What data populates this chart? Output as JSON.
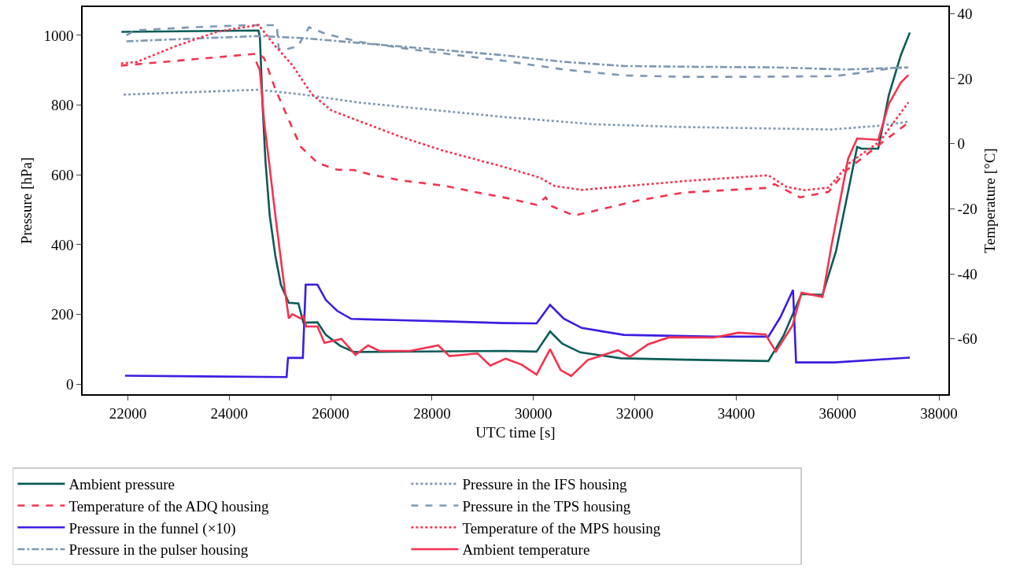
{
  "chart_data": {
    "type": "line",
    "xlabel": "UTC time [s]",
    "ylabel": "Pressure [hPa]",
    "y2label": "Temperature [°C]",
    "xlim": [
      21108,
      38185
    ],
    "xticks": [
      22000,
      24000,
      26000,
      28000,
      30000,
      32000,
      34000,
      36000,
      38000
    ],
    "ylim": [
      -29,
      1081
    ],
    "yticks": [
      0,
      200,
      400,
      600,
      800,
      1000
    ],
    "y2lim": [
      -77,
      42
    ],
    "y2ticks": [
      -60,
      -40,
      -20,
      0,
      20,
      40
    ],
    "grid": false,
    "legend": "bottom",
    "marker": "none",
    "series": [
      {
        "name": "Ambient pressure",
        "color": "#0b5c57",
        "line_style": "solid",
        "x": [
          21873,
          24577,
          24604,
          24660,
          24715,
          24798,
          24909,
          25020,
          25175,
          25364,
          25463,
          25740,
          25906,
          26184,
          26461,
          29409,
          30062,
          30329,
          30567,
          30923,
          31725,
          32972,
          34634,
          34931,
          35287,
          35703,
          35970,
          36386,
          36475,
          36802,
          37010,
          37247,
          37425
        ],
        "values": [
          1010,
          1014,
          996,
          792,
          638,
          484,
          368,
          284,
          233,
          231,
          176,
          177,
          141,
          110,
          92,
          95,
          93,
          151,
          116,
          91,
          74,
          70,
          66,
          138,
          258,
          256,
          382,
          680,
          675,
          675,
          828,
          943,
          1008
        ]
      },
      {
        "name": "Pressure in the TPS housing",
        "color": "#7f98b2",
        "line_style": "dashed",
        "x": [
          21972,
          22139,
          23247,
          24355,
          24937,
          24976,
          25075,
          25353,
          25574,
          25906,
          26572,
          27680,
          29409,
          30597,
          31784,
          32972,
          34159,
          35941,
          36535,
          37069,
          37396
        ],
        "values": [
          1000,
          1014,
          1023,
          1029,
          1029,
          962,
          958,
          969,
          1023,
          1004,
          981,
          958,
          927,
          902,
          885,
          881,
          881,
          883,
          894,
          906,
          908
        ]
      },
      {
        "name": "Pressure in the pulser housing",
        "color": "#7f98b2",
        "line_style": "dashdot",
        "x": [
          21972,
          24577,
          25463,
          26572,
          29409,
          30597,
          31784,
          32972,
          34753,
          36178,
          37396
        ],
        "values": [
          983,
          998,
          992,
          978,
          943,
          924,
          912,
          910,
          908,
          902,
          908
        ]
      },
      {
        "name": "Pressure in the IFS housing",
        "color": "#7f98b2",
        "line_style": "dotted",
        "x": [
          21917,
          24577,
          25463,
          26572,
          29409,
          31190,
          32972,
          35881,
          36831,
          37396
        ],
        "values": [
          830,
          844,
          830,
          807,
          766,
          745,
          737,
          730,
          741,
          752
        ]
      },
      {
        "name": "Pressure in the funnel (×10)",
        "color": "#3b1ee0",
        "line_style": "solid",
        "x": [
          21945,
          25131,
          25159,
          25452,
          25508,
          25740,
          25906,
          26127,
          26406,
          26849,
          28234,
          29409,
          30062,
          30329,
          30597,
          30953,
          31784,
          33565,
          34634,
          34872,
          35121,
          35181,
          35941,
          37425
        ],
        "values": [
          24,
          20,
          75,
          75,
          285,
          285,
          241,
          210,
          187,
          185,
          180,
          175,
          174,
          227,
          188,
          161,
          141,
          136,
          136,
          192,
          270,
          62,
          62,
          76
        ]
      },
      {
        "name": "Ambient temperature",
        "color": "#f5334f",
        "line_style": "solid",
        "axis": "y2",
        "x": [
          24532,
          24604,
          24688,
          24771,
          24909,
          25075,
          25175,
          25242,
          25408,
          25463,
          25519,
          25740,
          25879,
          26212,
          26489,
          26738,
          26960,
          27569,
          28123,
          28345,
          28899,
          29148,
          29453,
          29765,
          30062,
          30329,
          30537,
          30745,
          31072,
          31665,
          31903,
          32259,
          32675,
          33565,
          34040,
          34575,
          34783,
          35110,
          35287,
          35703,
          35881,
          36208,
          36386,
          36802,
          37010,
          37247,
          37396
        ],
        "values": [
          25.2,
          22.6,
          6.9,
          -3.8,
          -22,
          -42.6,
          -53.7,
          -52.4,
          -53.7,
          -52.9,
          -56.2,
          -56.2,
          -61.2,
          -60,
          -64.9,
          -62,
          -63.7,
          -63.7,
          -62,
          -65.3,
          -64.5,
          -68.2,
          -66.1,
          -67.9,
          -71,
          -63.2,
          -69.6,
          -71.4,
          -66.5,
          -63.5,
          -65.5,
          -61.7,
          -59.5,
          -59.6,
          -58.1,
          -58.6,
          -63.9,
          -55.9,
          -45.8,
          -47.1,
          -31.2,
          -4.6,
          1.6,
          1.2,
          12.2,
          18.8,
          21.1
        ]
      },
      {
        "name": "Temperature of the ADQ housing",
        "color": "#f5334f",
        "line_style": "dashed",
        "axis": "y2",
        "x": [
          21864,
          24577,
          24688,
          24909,
          25186,
          25408,
          25740,
          26128,
          26461,
          26793,
          27403,
          28234,
          28899,
          29409,
          30062,
          30240,
          30359,
          30804,
          31487,
          32081,
          32972,
          34575,
          34753,
          35258,
          35822,
          36178,
          36831,
          37396
        ],
        "values": [
          24,
          27.7,
          26.3,
          16.8,
          6.9,
          -0.9,
          -5.9,
          -8,
          -8.1,
          -9.5,
          -11.3,
          -12.9,
          -15,
          -16.5,
          -18.8,
          -16.5,
          -19.2,
          -22.1,
          -19.6,
          -17.4,
          -15,
          -13.6,
          -12.4,
          -16.5,
          -14.8,
          -8.1,
          -0.2,
          6.5
        ]
      },
      {
        "name": "Temperature of the MPS housing",
        "color": "#f5334f",
        "line_style": "dotted",
        "axis": "y2",
        "x": [
          21864,
          22169,
          22945,
          23776,
          24577,
          24909,
          25242,
          25630,
          26018,
          26572,
          27403,
          28234,
          29409,
          30122,
          30418,
          30953,
          32972,
          34634,
          34991,
          35347,
          35822,
          36237,
          36831,
          37396
        ],
        "values": [
          24.7,
          25.1,
          30,
          34.5,
          36.5,
          30,
          24.2,
          15.2,
          10.2,
          6.9,
          2,
          -2.2,
          -7.1,
          -10.4,
          -13,
          -14.2,
          -11.5,
          -9.7,
          -13.3,
          -14.3,
          -13.5,
          -5.9,
          0.7,
          12.7
        ]
      }
    ]
  }
}
